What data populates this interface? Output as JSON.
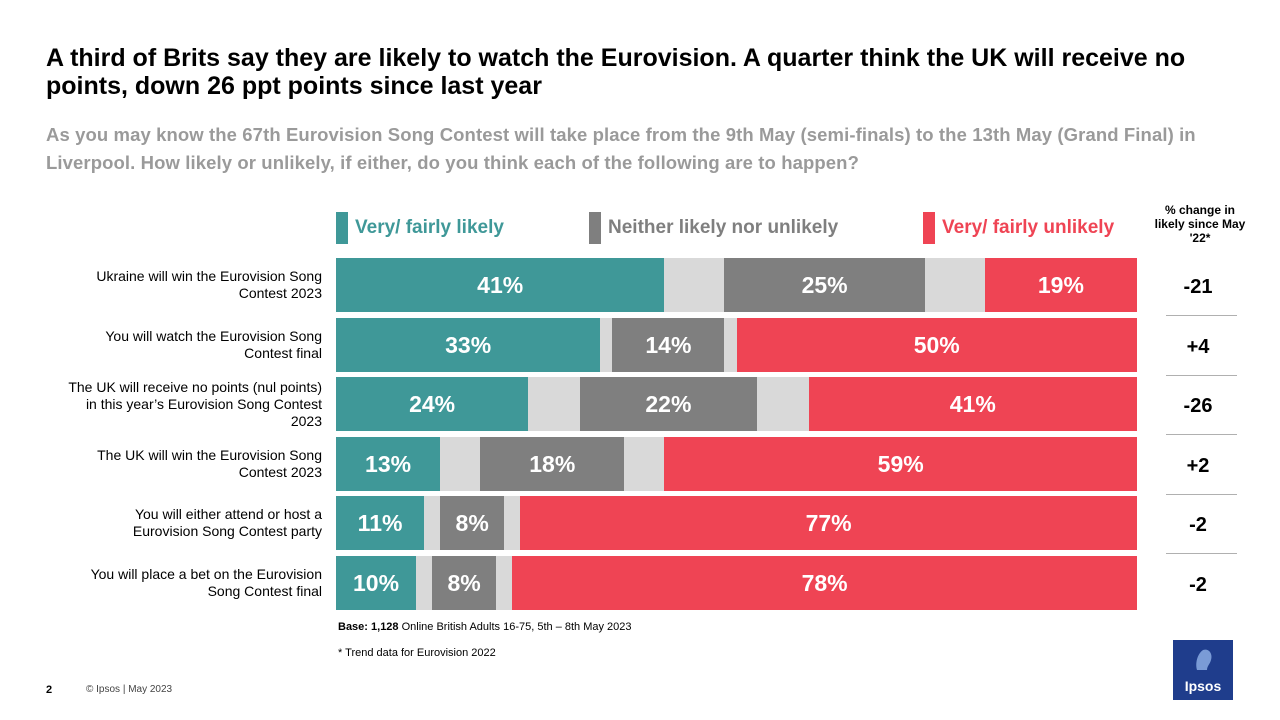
{
  "header": {
    "title": "A third of Brits say they are likely to watch the Eurovision. A quarter think the UK will receive no points, down 26 ppt points since last year",
    "subtitle": "As you may know the 67th Eurovision Song Contest will take place from the 9th May (semi-finals) to the 13th May (Grand Final) in Liverpool. How likely or unlikely, if either, do you think each of the following are to happen?"
  },
  "colors": {
    "likely": "#3f9898",
    "neither": "#7f7f7f",
    "unlikely": "#ef4454",
    "dontknow": "#d9d9d9"
  },
  "chart_data": {
    "type": "bar",
    "stacked": true,
    "orientation": "horizontal",
    "legend": {
      "likely": "Very/ fairly likely",
      "neither": "Neither likely nor unlikely",
      "unlikely": "Very/ fairly unlikely"
    },
    "change_header": "% change in likely since May '22*",
    "rows": [
      {
        "label_lines": [
          "Ukraine will win the Eurovision Song",
          "Contest 2023"
        ],
        "likely": 41,
        "neither": 25,
        "unlikely": 19,
        "likely_label": "41%",
        "neither_label": "25%",
        "unlikely_label": "19%",
        "change": "-21"
      },
      {
        "label_lines": [
          "You will watch the Eurovision Song",
          "Contest final"
        ],
        "likely": 33,
        "neither": 14,
        "unlikely": 50,
        "likely_label": "33%",
        "neither_label": "14%",
        "unlikely_label": "50%",
        "change": "+4"
      },
      {
        "label_lines": [
          "The UK will receive no points (nul points)",
          "in this year’s Eurovision Song Contest",
          "2023"
        ],
        "likely": 24,
        "neither": 22,
        "unlikely": 41,
        "likely_label": "24%",
        "neither_label": "22%",
        "unlikely_label": "41%",
        "change": "-26"
      },
      {
        "label_lines": [
          "The UK will win the Eurovision Song",
          "Contest 2023"
        ],
        "likely": 13,
        "neither": 18,
        "unlikely": 59,
        "likely_label": "13%",
        "neither_label": "18%",
        "unlikely_label": "59%",
        "change": "+2"
      },
      {
        "label_lines": [
          "You will either attend or host a",
          "Eurovision Song Contest party"
        ],
        "likely": 11,
        "neither": 8,
        "unlikely": 77,
        "likely_label": "11%",
        "neither_label": "8%",
        "unlikely_label": "77%",
        "change": "-2"
      },
      {
        "label_lines": [
          "You will place a bet on the Eurovision",
          "Song Contest final"
        ],
        "likely": 10,
        "neither": 8,
        "unlikely": 78,
        "likely_label": "10%",
        "neither_label": "8%",
        "unlikely_label": "78%",
        "change": "-2"
      }
    ]
  },
  "notes": {
    "base_bold": "Base: 1,128",
    "base_rest": " Online British Adults 16-75, 5th – 8th May 2023",
    "trend": "* Trend data for Eurovision 2022"
  },
  "footer": {
    "page": "2",
    "copyright": "© Ipsos | May 2023",
    "logo": "Ipsos"
  }
}
